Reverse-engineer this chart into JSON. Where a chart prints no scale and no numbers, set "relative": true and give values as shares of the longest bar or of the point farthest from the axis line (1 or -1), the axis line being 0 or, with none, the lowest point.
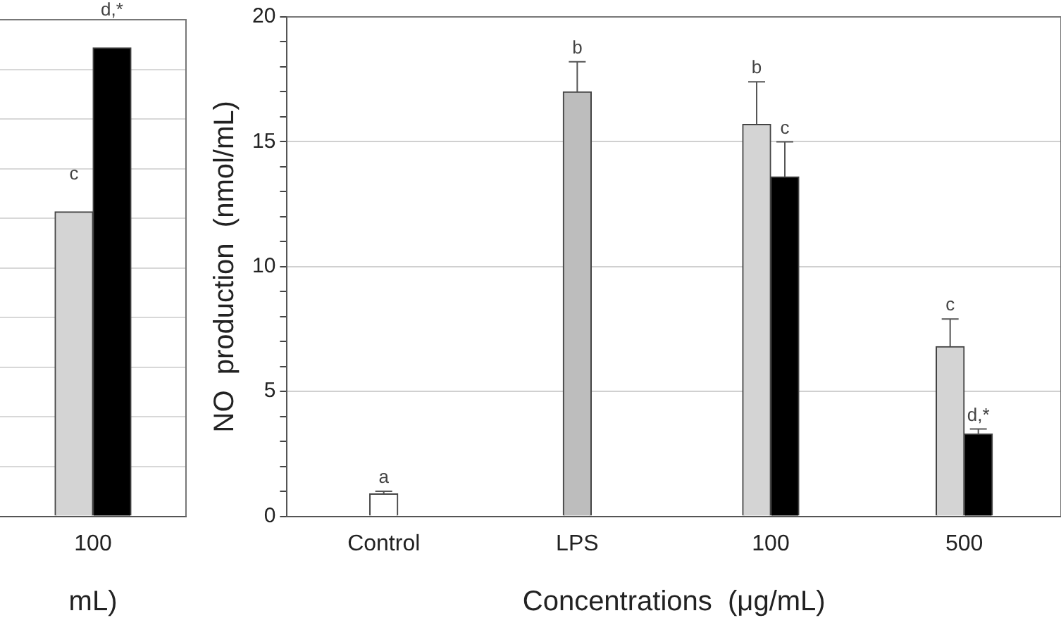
{
  "chart_data": [
    {
      "type": "bar",
      "relative": true,
      "xlabel": "mL)",
      "categories": [
        "100"
      ],
      "grid": "y",
      "legend": false,
      "series": [
        {
          "color": "#d4d4d4",
          "values": [
            0.65
          ]
        },
        {
          "color": "#000000",
          "values": [
            1
          ]
        }
      ],
      "annotations": [
        "c",
        "d,*"
      ]
    },
    {
      "type": "bar",
      "xlabel": "Concentrations  (μg/mL)",
      "ylabel": "NO  production  (nmol/mL)",
      "categories": [
        "Control",
        "LPS",
        "100",
        "500"
      ],
      "grid": "y",
      "legend": false,
      "ylim": [
        0,
        20
      ],
      "yticks": [
        0,
        {
          "value": 1,
          "label": null
        },
        {
          "value": 2,
          "label": null
        },
        {
          "value": 3,
          "label": null
        },
        {
          "value": 4,
          "label": null
        },
        5,
        {
          "value": 6,
          "label": null
        },
        {
          "value": 7,
          "label": null
        },
        {
          "value": 8,
          "label": null
        },
        {
          "value": 9,
          "label": null
        },
        10,
        {
          "value": 11,
          "label": null
        },
        {
          "value": 12,
          "label": null
        },
        {
          "value": 13,
          "label": null
        },
        {
          "value": 14,
          "label": null
        },
        15,
        {
          "value": 16,
          "label": null
        },
        {
          "value": 17,
          "label": null
        },
        {
          "value": 18,
          "label": null
        },
        {
          "value": 19,
          "label": null
        },
        20
      ],
      "series": [
        {
          "color": "#ffffff",
          "values": [
            0.9,
            null,
            null,
            null
          ],
          "errors": [
            0.1,
            null,
            null,
            null
          ]
        },
        {
          "color": "#bdbdbd",
          "values": [
            null,
            17.0,
            null,
            null
          ],
          "errors": [
            null,
            1.2,
            null,
            null
          ]
        },
        {
          "color": "#d4d4d4",
          "values": [
            null,
            null,
            15.7,
            6.8
          ],
          "errors": [
            null,
            null,
            1.7,
            1.1
          ]
        },
        {
          "color": "#000000",
          "values": [
            null,
            null,
            13.6,
            3.3
          ],
          "errors": [
            null,
            null,
            1.4,
            0.2
          ]
        }
      ],
      "annotations": [
        {
          "text": "a",
          "x": "Control",
          "y": 1.0
        },
        {
          "text": "b",
          "x": "LPS",
          "y": 18.2
        },
        {
          "text": "b",
          "x": "100",
          "y": 17.4
        },
        {
          "text": "c",
          "x": "100",
          "y": 15.0
        },
        {
          "text": "c",
          "x": "500",
          "y": 7.9
        },
        {
          "text": "d,*",
          "x": "500",
          "y": 3.5
        }
      ]
    }
  ]
}
